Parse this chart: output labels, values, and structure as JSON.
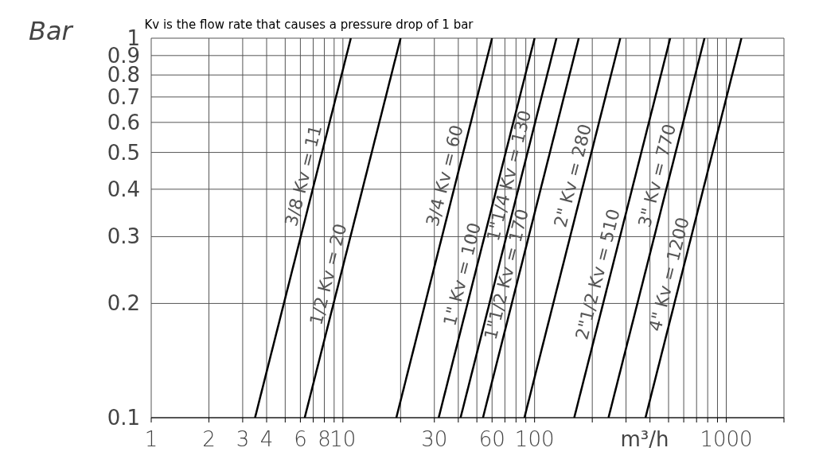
{
  "chart_data": {
    "type": "line",
    "title": "Kv is the flow rate that causes a pressure drop of 1 bar",
    "xlabel": "m³/h",
    "ylabel": "Bar",
    "log": "xy",
    "grid": true,
    "marker": "none",
    "line_style": "solid",
    "xlim": [
      1,
      2000
    ],
    "ylim": [
      0.1,
      1
    ],
    "xticks": [
      1,
      2,
      3,
      4,
      {
        "value": 5,
        "label": null
      },
      6,
      {
        "value": 7,
        "label": null
      },
      8,
      {
        "value": 9,
        "label": null
      },
      10,
      {
        "value": 20,
        "label": null
      },
      30,
      {
        "value": 40,
        "label": null
      },
      {
        "value": 50,
        "label": null
      },
      60,
      {
        "value": 70,
        "label": null
      },
      {
        "value": 80,
        "label": null
      },
      {
        "value": 90,
        "label": null
      },
      100,
      {
        "value": 200,
        "label": null
      },
      {
        "value": 300,
        "label": null
      },
      {
        "value": 400,
        "label": null
      },
      {
        "value": 500,
        "label": null
      },
      {
        "value": 600,
        "label": null
      },
      {
        "value": 700,
        "label": null
      },
      {
        "value": 800,
        "label": null
      },
      {
        "value": 900,
        "label": null
      },
      1000,
      {
        "value": 2000,
        "label": null
      }
    ],
    "yticks": [
      0.1,
      0.2,
      0.3,
      0.4,
      0.5,
      0.6,
      0.7,
      0.8,
      0.9,
      1
    ],
    "series": [
      {
        "name": "3/8  Kv = 11",
        "color": "#000000",
        "x": [
          3.48,
          11
        ],
        "values": [
          0.1,
          1
        ]
      },
      {
        "name": "1/2  Kv = 20",
        "color": "#000000",
        "x": [
          6.32,
          20
        ],
        "values": [
          0.1,
          1
        ]
      },
      {
        "name": "3/4  Kv = 60",
        "color": "#000000",
        "x": [
          19,
          60
        ],
        "values": [
          0.1,
          1
        ]
      },
      {
        "name": "1\"  Kv = 100",
        "color": "#000000",
        "x": [
          31.6,
          100
        ],
        "values": [
          0.1,
          1
        ]
      },
      {
        "name": "1\"1/4  Kv = 130",
        "color": "#000000",
        "x": [
          41.1,
          130
        ],
        "values": [
          0.1,
          1
        ]
      },
      {
        "name": "1\"1/2  Kv = 170",
        "color": "#000000",
        "x": [
          53.8,
          170
        ],
        "values": [
          0.1,
          1
        ]
      },
      {
        "name": "2\"  Kv = 280",
        "color": "#000000",
        "x": [
          88.5,
          280
        ],
        "values": [
          0.1,
          1
        ]
      },
      {
        "name": "2\"1/2  Kv = 510",
        "color": "#000000",
        "x": [
          161,
          510
        ],
        "values": [
          0.1,
          1
        ]
      },
      {
        "name": "3\"  Kv = 770",
        "color": "#000000",
        "x": [
          243,
          770
        ],
        "values": [
          0.1,
          1
        ]
      },
      {
        "name": "4\"  Kv = 1200",
        "color": "#000000",
        "x": [
          379,
          1200
        ],
        "values": [
          0.1,
          1
        ]
      }
    ]
  }
}
